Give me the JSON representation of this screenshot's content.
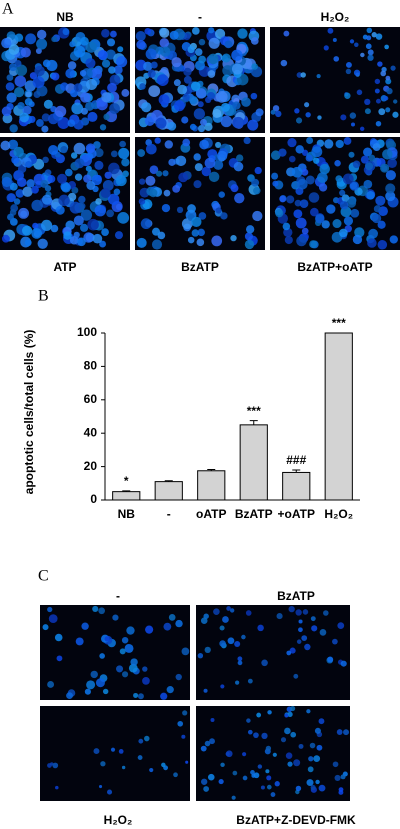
{
  "panels": {
    "a": {
      "label": "A",
      "top": [
        "NB",
        "-",
        "H₂O₂"
      ],
      "bottom": [
        "ATP",
        "BzATP",
        "BzATP+oATP"
      ]
    },
    "b": {
      "label": "B"
    },
    "c": {
      "label": "C",
      "top": [
        "-",
        "BzATP"
      ],
      "bottom": [
        "H₂O₂",
        "BzATP+Z-DEVD-FMK"
      ]
    }
  },
  "chart_data": {
    "type": "bar",
    "y_label": "apoptotic cells/total cells (%)",
    "categories": [
      "NB",
      "-",
      "oATP",
      "BzATP",
      "+oATP",
      "H₂O₂"
    ],
    "values": [
      5,
      11,
      17.5,
      45,
      16.5,
      100
    ],
    "errors": [
      0.5,
      0.5,
      0.8,
      2.5,
      1.5,
      0
    ],
    "annotations": [
      "*",
      null,
      null,
      "***",
      "###",
      "***"
    ],
    "color": "#d3d3d3",
    "ylim": [
      0,
      100
    ],
    "yticks": [
      0,
      20,
      40,
      60,
      80,
      100
    ]
  }
}
